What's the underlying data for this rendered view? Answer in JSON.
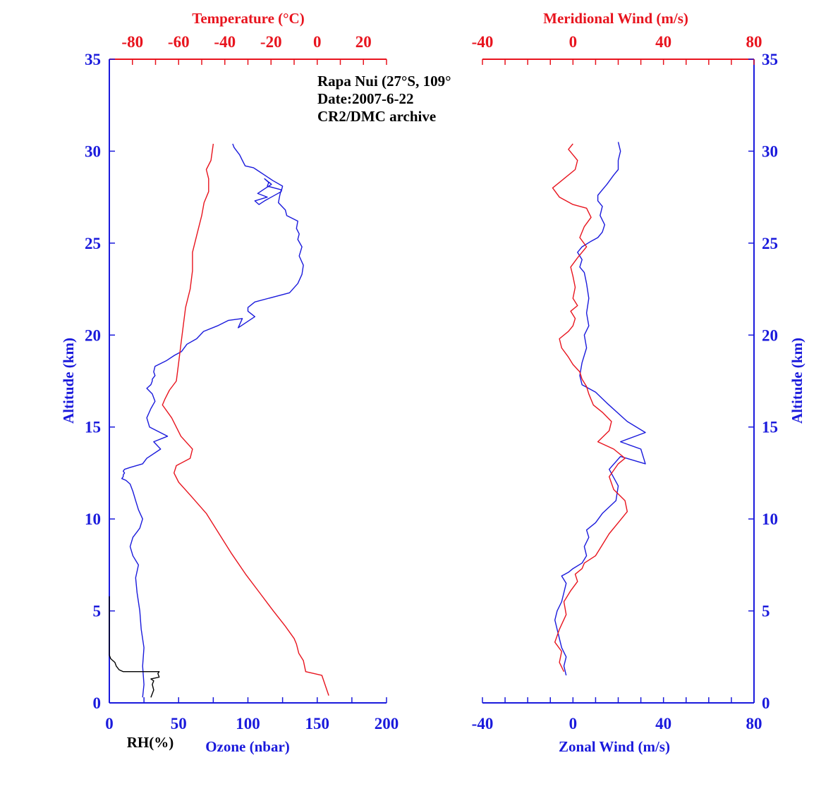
{
  "colors": {
    "blue": "#1a1adc",
    "red": "#e8141e",
    "black": "#000000"
  },
  "chart_data": [
    {
      "type": "line",
      "panel": "left",
      "annotation": [
        "Rapa Nui (27°S, 109°",
        "Date:2007-6-22",
        "CR2/DMC archive"
      ],
      "ylabel": "Altitude (km)",
      "ylim": [
        0,
        35
      ],
      "yticks": [
        0,
        5,
        10,
        15,
        20,
        25,
        30,
        35
      ],
      "axes": {
        "bottom": {
          "label": "Ozone (nbar)",
          "range": [
            0,
            200
          ],
          "ticks": [
            0,
            50,
            100,
            150,
            200
          ]
        },
        "bottom_inner": {
          "label": "RH(%)"
        },
        "top": {
          "label": "Temperature (°C)",
          "range": [
            -90,
            30
          ],
          "ticks": [
            -80,
            -60,
            -40,
            -20,
            0,
            20
          ]
        }
      },
      "series": [
        {
          "axis": "bottom",
          "color": "blue",
          "x": [
            24,
            25,
            24,
            25,
            23,
            22,
            20,
            19,
            21,
            17,
            15,
            17,
            20,
            22,
            24,
            21,
            19,
            17,
            15,
            12,
            9,
            10,
            10,
            11,
            10,
            11,
            15,
            24,
            27,
            37,
            32,
            42,
            29,
            27,
            30,
            33,
            31,
            27,
            30,
            31,
            31,
            33,
            32,
            33,
            41,
            47,
            52,
            56,
            63,
            68,
            78,
            86,
            96,
            93,
            105,
            100,
            100,
            105,
            130,
            136,
            139,
            140,
            137,
            139,
            136,
            137,
            135,
            136,
            128,
            127,
            122,
            123,
            124,
            114,
            115,
            112,
            117,
            111,
            107,
            114,
            105,
            108,
            112,
            124,
            125,
            118,
            112,
            106,
            104,
            98,
            96,
            94,
            92,
            90,
            89
          ],
          "y": [
            0.3,
            1,
            2,
            3,
            4,
            5,
            6,
            6.8,
            7.5,
            8,
            8.5,
            9,
            9.3,
            9.5,
            10,
            10.5,
            11,
            11.5,
            11.9,
            12.1,
            12.2,
            12.3,
            12.4,
            12.5,
            12.6,
            12.7,
            12.8,
            13,
            13.3,
            13.8,
            14.2,
            14.5,
            15,
            15.5,
            16,
            16.4,
            16.8,
            17.1,
            17.3,
            17.5,
            17.6,
            17.8,
            18,
            18.3,
            18.6,
            18.9,
            19.1,
            19.5,
            19.8,
            20.2,
            20.5,
            20.8,
            20.9,
            20.4,
            21,
            21.3,
            21.5,
            21.8,
            22.3,
            22.8,
            23.3,
            23.8,
            24.3,
            24.8,
            25.2,
            25.5,
            25.8,
            26.2,
            26.5,
            26.8,
            27.2,
            27.6,
            27.9,
            28.1,
            28.3,
            28.5,
            28.2,
            27.9,
            27.7,
            27.5,
            27.3,
            27.1,
            27.3,
            27.8,
            28.1,
            28.4,
            28.7,
            29.0,
            29.1,
            29.2,
            29.5,
            29.8,
            30.0,
            30.2,
            30.4
          ]
        },
        {
          "axis": "top",
          "color": "red",
          "x": [
            5,
            2,
            -5,
            -6,
            -8,
            -9,
            -10,
            -14,
            -19,
            -25,
            -31,
            -37,
            -43,
            -48,
            -55,
            -60,
            -62,
            -61,
            -55,
            -54,
            -59,
            -63,
            -67,
            -66,
            -64,
            -61,
            -60,
            -59,
            -58,
            -57,
            -55,
            -54,
            -54,
            -52,
            -50,
            -49,
            -47,
            -47,
            -48,
            -46,
            -45
          ],
          "y": [
            0.4,
            1.5,
            1.7,
            2.3,
            2.7,
            3.2,
            3.5,
            4.2,
            5,
            6,
            7,
            8.1,
            9.3,
            10.3,
            11.3,
            12,
            12.5,
            12.9,
            13.3,
            13.8,
            14.5,
            15.5,
            16.2,
            16.5,
            17,
            17.5,
            18.5,
            19.5,
            20.5,
            21.5,
            22.5,
            23.5,
            24.5,
            25.5,
            26.5,
            27.2,
            27.8,
            28.5,
            29,
            29.5,
            30.4
          ]
        },
        {
          "axis": "bottom",
          "color": "black",
          "x": [
            30,
            32,
            31,
            32,
            30,
            36,
            35,
            36,
            10,
            7,
            5,
            4,
            1,
            0,
            0,
            0
          ],
          "y": [
            0.3,
            0.7,
            1.0,
            1.2,
            1.3,
            1.4,
            1.6,
            1.7,
            1.7,
            1.8,
            2.0,
            2.2,
            2.4,
            2.6,
            4,
            5.8
          ]
        }
      ]
    },
    {
      "type": "line",
      "panel": "right",
      "ylabel": "Altitude (km)",
      "ylim": [
        0,
        35
      ],
      "yticks": [
        0,
        5,
        10,
        15,
        20,
        25,
        30,
        35
      ],
      "axes": {
        "bottom": {
          "label": "Zonal Wind (m/s)",
          "range": [
            -40,
            80
          ],
          "ticks": [
            -40,
            0,
            40,
            80
          ]
        },
        "top": {
          "label": "Meridional Wind (m/s)",
          "range": [
            -40,
            80
          ],
          "ticks": [
            -40,
            0,
            40,
            80
          ]
        }
      },
      "series": [
        {
          "axis": "bottom",
          "color": "blue",
          "x": [
            -3,
            -4,
            -3,
            -5,
            -7,
            -8,
            -7,
            -5,
            -4,
            -3,
            -5,
            -2,
            0,
            4,
            6,
            5,
            7,
            6,
            10,
            13,
            19,
            20,
            16,
            21,
            32,
            30,
            21,
            32,
            24,
            15,
            10,
            4,
            3,
            4,
            6,
            5,
            7,
            6,
            7,
            6,
            5,
            3,
            4,
            2,
            4,
            8,
            11,
            13,
            14,
            12,
            13,
            11,
            11,
            13,
            15,
            18,
            20,
            20,
            21,
            20
          ],
          "y": [
            1.5,
            2,
            2.5,
            3,
            4,
            4.5,
            5,
            5.5,
            6.0,
            6.5,
            6.9,
            7.1,
            7.3,
            7.6,
            8,
            8.5,
            9,
            9.4,
            9.8,
            10.3,
            11,
            11.8,
            12.7,
            13.4,
            13.0,
            13.8,
            14.2,
            14.7,
            15.3,
            16.3,
            16.9,
            17.3,
            17.8,
            18.5,
            19.3,
            20,
            20.5,
            21.2,
            22,
            22.8,
            23.4,
            23.7,
            24.1,
            24.5,
            24.8,
            25.1,
            25.3,
            25.6,
            26.0,
            26.5,
            27.0,
            27.3,
            27.6,
            27.9,
            28.2,
            28.7,
            29.0,
            29.5,
            30.0,
            30.5
          ]
        },
        {
          "axis": "top",
          "color": "red",
          "x": [
            -4,
            -6,
            -5,
            -8,
            -6,
            -3,
            -4,
            -1,
            2,
            1,
            4,
            5,
            10,
            13,
            16,
            20,
            24,
            23,
            18,
            16,
            20,
            23,
            18,
            11,
            16,
            17,
            13,
            9,
            7,
            6,
            4,
            3,
            0,
            -2,
            -5,
            -6,
            -2,
            0,
            1,
            -1,
            2,
            0,
            1,
            0,
            -1,
            2,
            6,
            3,
            5,
            8,
            6,
            0,
            -6,
            -9,
            -4,
            1,
            2,
            0,
            -2,
            0
          ],
          "y": [
            1.7,
            2.2,
            2.8,
            3.3,
            4,
            4.8,
            5.5,
            6.1,
            6.6,
            7.0,
            7.3,
            7.6,
            8,
            8.6,
            9.2,
            9.8,
            10.4,
            11.0,
            11.6,
            12.3,
            13.0,
            13.3,
            13.8,
            14.2,
            14.8,
            15.3,
            15.8,
            16.2,
            16.8,
            17.2,
            17.6,
            18.0,
            18.4,
            18.8,
            19.3,
            19.8,
            20.2,
            20.5,
            20.9,
            21.3,
            21.6,
            22.0,
            22.6,
            23.2,
            23.7,
            24.2,
            24.8,
            25.3,
            25.9,
            26.4,
            26.9,
            27.1,
            27.5,
            28.0,
            28.5,
            29.0,
            29.5,
            29.8,
            30.1,
            30.4
          ]
        }
      ]
    }
  ]
}
